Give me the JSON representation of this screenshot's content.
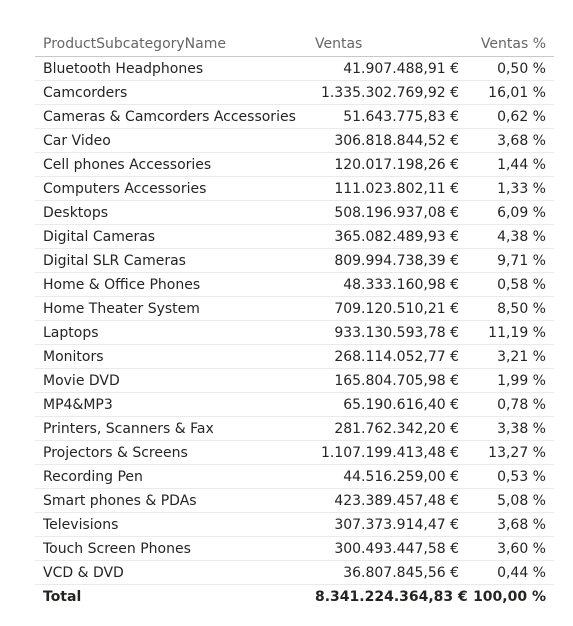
{
  "table": {
    "headers": {
      "name": "ProductSubcategoryName",
      "ventas": "Ventas",
      "pct": "Ventas %"
    },
    "rows": [
      {
        "name": "Bluetooth Headphones",
        "ventas": "41.907.488,91 €",
        "pct": "0,50 %"
      },
      {
        "name": "Camcorders",
        "ventas": "1.335.302.769,92 €",
        "pct": "16,01 %"
      },
      {
        "name": "Cameras & Camcorders Accessories",
        "ventas": "51.643.775,83 €",
        "pct": "0,62 %"
      },
      {
        "name": "Car Video",
        "ventas": "306.818.844,52 €",
        "pct": "3,68 %"
      },
      {
        "name": "Cell phones Accessories",
        "ventas": "120.017.198,26 €",
        "pct": "1,44 %"
      },
      {
        "name": "Computers Accessories",
        "ventas": "111.023.802,11 €",
        "pct": "1,33 %"
      },
      {
        "name": "Desktops",
        "ventas": "508.196.937,08 €",
        "pct": "6,09 %"
      },
      {
        "name": "Digital Cameras",
        "ventas": "365.082.489,93 €",
        "pct": "4,38 %"
      },
      {
        "name": "Digital SLR Cameras",
        "ventas": "809.994.738,39 €",
        "pct": "9,71 %"
      },
      {
        "name": "Home & Office Phones",
        "ventas": "48.333.160,98 €",
        "pct": "0,58 %"
      },
      {
        "name": "Home Theater System",
        "ventas": "709.120.510,21 €",
        "pct": "8,50 %"
      },
      {
        "name": "Laptops",
        "ventas": "933.130.593,78 €",
        "pct": "11,19 %"
      },
      {
        "name": "Monitors",
        "ventas": "268.114.052,77 €",
        "pct": "3,21 %"
      },
      {
        "name": "Movie DVD",
        "ventas": "165.804.705,98 €",
        "pct": "1,99 %"
      },
      {
        "name": "MP4&MP3",
        "ventas": "65.190.616,40 €",
        "pct": "0,78 %"
      },
      {
        "name": "Printers, Scanners & Fax",
        "ventas": "281.762.342,20 €",
        "pct": "3,38 %"
      },
      {
        "name": "Projectors & Screens",
        "ventas": "1.107.199.413,48 €",
        "pct": "13,27 %"
      },
      {
        "name": "Recording Pen",
        "ventas": "44.516.259,00 €",
        "pct": "0,53 %"
      },
      {
        "name": "Smart phones & PDAs",
        "ventas": "423.389.457,48 €",
        "pct": "5,08 %"
      },
      {
        "name": "Televisions",
        "ventas": "307.373.914,47 €",
        "pct": "3,68 %"
      },
      {
        "name": "Touch Screen Phones",
        "ventas": "300.493.447,58 €",
        "pct": "3,60 %"
      },
      {
        "name": "VCD & DVD",
        "ventas": "36.807.845,56 €",
        "pct": "0,44 %"
      }
    ],
    "total": {
      "label": "Total",
      "ventas": "8.341.224.364,83 €",
      "pct": "100,00 %"
    }
  }
}
